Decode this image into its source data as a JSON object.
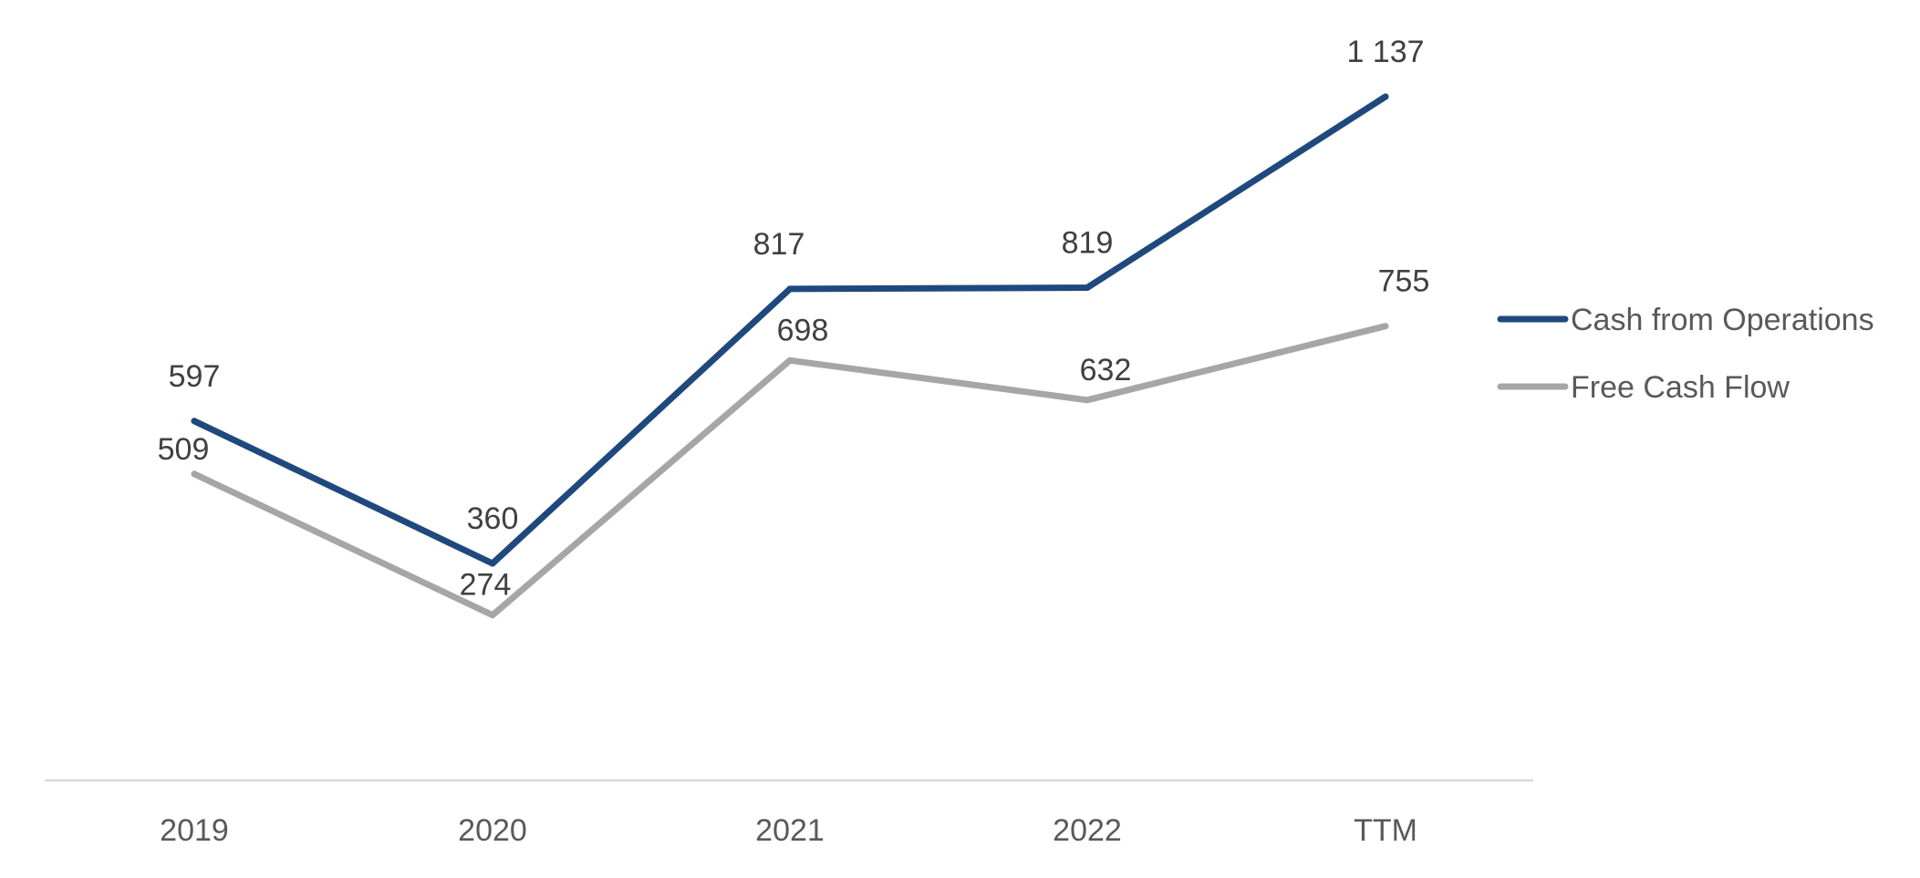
{
  "chart_data": {
    "type": "line",
    "categories": [
      "2019",
      "2020",
      "2021",
      "2022",
      "TTM"
    ],
    "series": [
      {
        "name": "Cash from Operations",
        "color": "#1f497d",
        "values": [
          597,
          360,
          817,
          819,
          1137
        ],
        "labels": [
          "597",
          "360",
          "817",
          "819",
          "1 137"
        ]
      },
      {
        "name": "Free Cash Flow",
        "color": "#a6a6a6",
        "values": [
          509,
          274,
          698,
          632,
          755
        ],
        "labels": [
          "509",
          "274",
          "698",
          "632",
          "755"
        ]
      }
    ],
    "ylim": [
      -200,
      1250
    ],
    "grid": false,
    "legend_position": "right"
  }
}
